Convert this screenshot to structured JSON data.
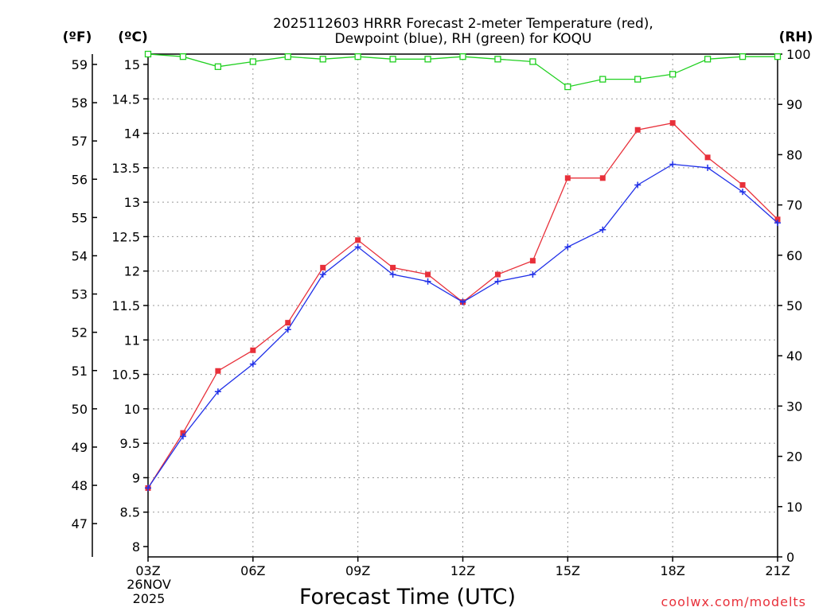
{
  "chart_data": {
    "type": "line",
    "title_line1": "2025112603 HRRR Forecast 2-meter Temperature (red),",
    "title_line2": "Dewpoint (blue), RH (green) for KOQU",
    "xlabel": "Forecast Time (UTC)",
    "credit": "coolwx.com/modelts",
    "units": {
      "fahrenheit": "(ºF)",
      "celsius": "(ºC)",
      "rh": "(RH)"
    },
    "x_ticks": [
      "03Z",
      "06Z",
      "09Z",
      "12Z",
      "15Z",
      "18Z",
      "21Z"
    ],
    "x_tick_hours": [
      3,
      6,
      9,
      12,
      15,
      18,
      21
    ],
    "date_line1": "26NOV",
    "date_line2": "2025",
    "x_range": [
      3,
      21
    ],
    "celsius_ylim": [
      7.85,
      15.15
    ],
    "celsius_ticks": [
      "8",
      "8.5",
      "9",
      "9.5",
      "10",
      "10.5",
      "11",
      "11.5",
      "12",
      "12.5",
      "13",
      "13.5",
      "14",
      "14.5",
      "15"
    ],
    "fahrenheit_ticks": [
      "47",
      "48",
      "49",
      "50",
      "51",
      "52",
      "53",
      "54",
      "55",
      "56",
      "57",
      "58",
      "59"
    ],
    "rh_ylim": [
      0,
      100
    ],
    "rh_ticks": [
      "0",
      "10",
      "20",
      "30",
      "40",
      "50",
      "60",
      "70",
      "80",
      "90",
      "100"
    ],
    "x_hours": [
      3,
      4,
      5,
      6,
      7,
      8,
      9,
      10,
      11,
      12,
      13,
      14,
      15,
      16,
      17,
      18,
      19,
      20,
      21
    ],
    "series": [
      {
        "name": "Temperature",
        "color": "#e8303a",
        "marker": "filled-square",
        "axis": "celsius",
        "values": [
          8.85,
          9.65,
          10.55,
          10.85,
          11.25,
          12.05,
          12.45,
          12.05,
          11.95,
          11.55,
          11.95,
          12.15,
          13.35,
          13.35,
          14.05,
          14.15,
          13.65,
          13.25,
          12.75
        ]
      },
      {
        "name": "Dewpoint",
        "color": "#2030e8",
        "marker": "plus",
        "axis": "celsius",
        "values": [
          8.85,
          9.6,
          10.25,
          10.65,
          11.15,
          11.95,
          12.35,
          11.95,
          11.85,
          11.55,
          11.85,
          11.95,
          12.35,
          12.6,
          13.25,
          13.55,
          13.5,
          13.15,
          12.7
        ]
      },
      {
        "name": "RH",
        "color": "#20d020",
        "marker": "open-square",
        "axis": "rh",
        "values": [
          100,
          99.5,
          97.5,
          98.5,
          99.5,
          99,
          99.5,
          99,
          99,
          99.5,
          99,
          98.5,
          93.5,
          95,
          95,
          96,
          99,
          99.5,
          99.5
        ]
      }
    ]
  }
}
